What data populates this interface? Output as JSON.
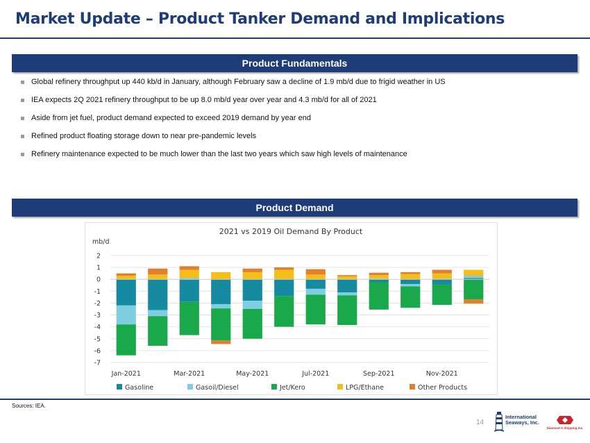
{
  "page_title": "Market Update – Product Tanker Demand and Implications",
  "section1": {
    "header": "Product Fundamentals",
    "bullets": [
      "Global refinery throughput up 440 kb/d in January, although February saw a decline of 1.9 mb/d due to frigid weather in US",
      "IEA expects 2Q 2021 refinery throughput to be up 8.0 mb/d year over year and 4.3 mb/d for all of 2021",
      "Aside from jet fuel, product demand expected to exceed 2019 demand by year end",
      "Refined product floating storage down to near pre-pandemic levels",
      "Refinery maintenance expected to be much lower than the last two years which saw high levels of maintenance"
    ]
  },
  "section2": {
    "header": "Product Demand"
  },
  "sources": "Sources: IEA.",
  "page_number": "14",
  "logos": {
    "left_text_line1": "International",
    "left_text_line2": "Seaways, Inc.",
    "right_text": "Diamond S Shipping Inc."
  },
  "colors": {
    "navy": "#1d3c78",
    "Gasoline": "#168aa0",
    "Gasoil/Diesel": "#7fcde0",
    "Jet/Kero": "#1aa94a",
    "LPG/Ethane": "#f5bd18",
    "Other Products": "#e37e2c"
  },
  "chart_data": {
    "type": "bar",
    "stacked": true,
    "title": "2021 vs 2019 Oil Demand By Product",
    "ylabel": "mb/d",
    "xlabel": "",
    "ylim": [
      -7,
      2
    ],
    "yticks": [
      "2",
      "1",
      "0",
      "-1",
      "-2",
      "-3",
      "-4",
      "-5",
      "-6",
      "-7"
    ],
    "categories": [
      "Jan-2021",
      "Feb-2021",
      "Mar-2021",
      "Apr-2021",
      "May-2021",
      "Jun-2021",
      "Jul-2021",
      "Aug-2021",
      "Sep-2021",
      "Oct-2021",
      "Nov-2021",
      "Dec-2021"
    ],
    "x_tick_labels": [
      "Jan-2021",
      "",
      "Mar-2021",
      "",
      "May-2021",
      "",
      "Jul-2021",
      "",
      "Sep-2021",
      "",
      "Nov-2021",
      ""
    ],
    "legend_position": "bottom",
    "series": [
      {
        "name": "Gasoline",
        "values": [
          -2.2,
          -2.6,
          -1.9,
          -2.1,
          -1.8,
          -1.4,
          -0.8,
          -1.1,
          -0.25,
          -0.4,
          -0.45,
          0.1
        ]
      },
      {
        "name": "Gasoil/Diesel",
        "values": [
          -1.6,
          -0.5,
          0.1,
          -0.35,
          -0.7,
          0.0,
          -0.5,
          -0.25,
          0.05,
          -0.2,
          0.05,
          0.2
        ]
      },
      {
        "name": "Jet/Kero",
        "values": [
          -2.6,
          -2.5,
          -2.8,
          -2.7,
          -2.5,
          -2.6,
          -2.5,
          -2.5,
          -2.3,
          -1.8,
          -1.7,
          -1.7
        ]
      },
      {
        "name": "LPG/Ethane",
        "values": [
          0.3,
          0.4,
          0.7,
          0.6,
          0.6,
          0.8,
          0.4,
          0.25,
          0.3,
          0.45,
          0.45,
          0.5
        ]
      },
      {
        "name": "Other Products",
        "values": [
          0.2,
          0.5,
          0.3,
          -0.3,
          0.3,
          0.2,
          0.45,
          0.1,
          0.2,
          0.15,
          0.3,
          -0.35
        ]
      }
    ]
  }
}
